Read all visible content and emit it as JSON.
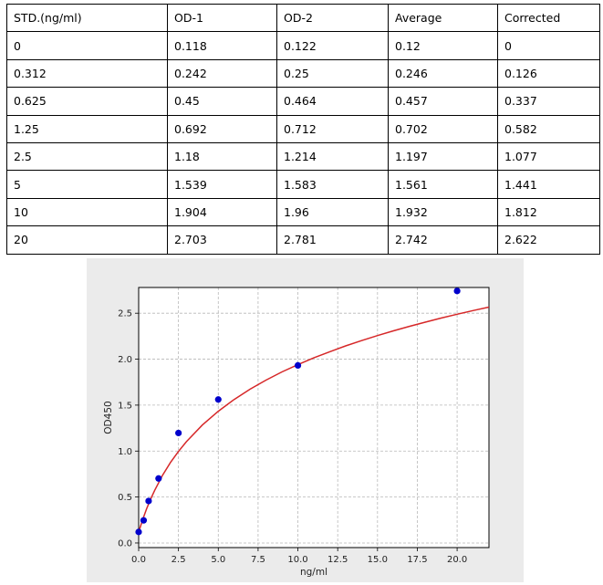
{
  "table": {
    "headers": [
      "STD.(ng/ml)",
      "OD-1",
      "OD-2",
      "Average",
      "Corrected"
    ],
    "rows": [
      [
        "0",
        "0.118",
        "0.122",
        "0.12",
        "0"
      ],
      [
        "0.312",
        "0.242",
        "0.25",
        "0.246",
        "0.126"
      ],
      [
        "0.625",
        "0.45",
        "0.464",
        "0.457",
        "0.337"
      ],
      [
        "1.25",
        "0.692",
        "0.712",
        "0.702",
        "0.582"
      ],
      [
        "2.5",
        "1.18",
        "1.214",
        "1.197",
        "1.077"
      ],
      [
        "5",
        "1.539",
        "1.583",
        "1.561",
        "1.441"
      ],
      [
        "10",
        "1.904",
        "1.96",
        "1.932",
        "1.812"
      ],
      [
        "20",
        "2.703",
        "2.781",
        "2.742",
        "2.622"
      ]
    ]
  },
  "colors": {
    "points": "#0000cc",
    "fit_curve": "#d62728",
    "panel_background": "#ebebeb",
    "plot_background": "#ffffff",
    "grid": "#b8b8b8"
  },
  "chart_data": {
    "type": "scatter",
    "xlabel": "ng/ml",
    "ylabel": "OD450",
    "xlim": [
      0,
      22
    ],
    "ylim": [
      -0.05,
      2.78
    ],
    "xticks": [
      "0.0",
      "2.5",
      "5.0",
      "7.5",
      "10.0",
      "12.5",
      "15.0",
      "17.5",
      "20.0"
    ],
    "xtick_values": [
      0,
      2.5,
      5,
      7.5,
      10,
      12.5,
      15,
      17.5,
      20
    ],
    "yticks": [
      "0.0",
      "0.5",
      "1.0",
      "1.5",
      "2.0",
      "2.5"
    ],
    "ytick_values": [
      0,
      0.5,
      1.0,
      1.5,
      2.0,
      2.5
    ],
    "grid": true,
    "points": {
      "x": [
        0,
        0.312,
        0.625,
        1.25,
        2.5,
        5,
        10,
        20
      ],
      "y": [
        0.12,
        0.246,
        0.457,
        0.702,
        1.197,
        1.561,
        1.932,
        2.742
      ]
    },
    "fit_curve": {
      "x": [
        0,
        0.25,
        0.5,
        0.75,
        1,
        1.5,
        2,
        2.5,
        3,
        4,
        5,
        6,
        7,
        8,
        9,
        10,
        11,
        12,
        13,
        14,
        15,
        16,
        17,
        18,
        19,
        20,
        21,
        22
      ],
      "y": [
        0.12,
        0.254,
        0.372,
        0.477,
        0.572,
        0.737,
        0.876,
        0.996,
        1.103,
        1.284,
        1.434,
        1.562,
        1.674,
        1.772,
        1.861,
        1.94,
        2.014,
        2.081,
        2.144,
        2.202,
        2.257,
        2.308,
        2.357,
        2.403,
        2.447,
        2.489,
        2.529,
        2.567
      ]
    }
  }
}
